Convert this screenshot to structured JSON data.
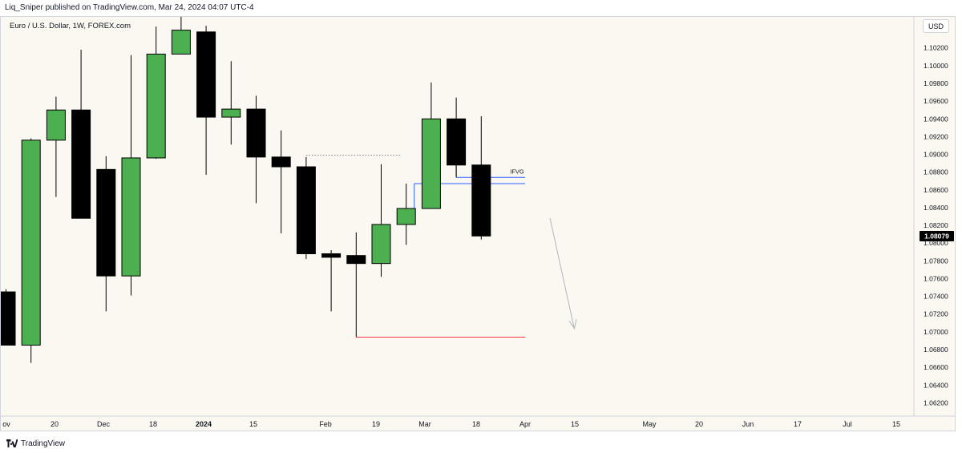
{
  "header": {
    "published": "Liq_Sniper published on TradingView.com, Mar 24, 2024 04:07 UTC-4"
  },
  "symbol": {
    "label": "Euro / U.S. Dollar, 1W, FOREX.com"
  },
  "currency": {
    "label": "USD"
  },
  "footer": {
    "brand": "TradingView"
  },
  "colors": {
    "background": "#fbf8f1",
    "bull": "#4caf50",
    "bear": "#000000",
    "wick": "#000000",
    "grid": "none",
    "blue_level": "#2962ff",
    "red_level": "#f23645",
    "arrow": "#b2b5be",
    "last_price_bg": "#000000"
  },
  "chart_data": {
    "type": "candlestick",
    "instrument": "Euro / U.S. Dollar",
    "timeframe": "1W",
    "grid": false,
    "ylim": [
      1.0605,
      1.1055
    ],
    "y_ticks": [
      1.102,
      1.1,
      1.098,
      1.096,
      1.094,
      1.092,
      1.09,
      1.088,
      1.086,
      1.084,
      1.082,
      1.08,
      1.078,
      1.076,
      1.074,
      1.072,
      1.07,
      1.068,
      1.066,
      1.064,
      1.062
    ],
    "y_tick_labels": [
      "1.10200",
      "1.10000",
      "1.09800",
      "1.09600",
      "1.09400",
      "1.09200",
      "1.09000",
      "1.08800",
      "1.08600",
      "1.08400",
      "1.08200",
      "1.08000",
      "1.07800",
      "1.07600",
      "1.07400",
      "1.07200",
      "1.07000",
      "1.06800",
      "1.06600",
      "1.06400",
      "1.06200"
    ],
    "x_ticks": [
      {
        "label": "ov",
        "bold": false
      },
      {
        "label": "20",
        "bold": false
      },
      {
        "label": "Dec",
        "bold": false
      },
      {
        "label": "18",
        "bold": false
      },
      {
        "label": "2024",
        "bold": true
      },
      {
        "label": "15",
        "bold": false
      },
      {
        "label": "Feb",
        "bold": false
      },
      {
        "label": "19",
        "bold": false
      },
      {
        "label": "Mar",
        "bold": false
      },
      {
        "label": "18",
        "bold": false
      },
      {
        "label": "Apr",
        "bold": false
      },
      {
        "label": "15",
        "bold": false
      },
      {
        "label": "May",
        "bold": false
      },
      {
        "label": "20",
        "bold": false
      },
      {
        "label": "Jun",
        "bold": false
      },
      {
        "label": "17",
        "bold": false
      },
      {
        "label": "Jul",
        "bold": false
      },
      {
        "label": "15",
        "bold": false
      }
    ],
    "candles": [
      {
        "o": 1.0745,
        "h": 1.0748,
        "l": 1.0685,
        "c": 1.0685
      },
      {
        "o": 1.0685,
        "h": 1.0918,
        "l": 1.0665,
        "c": 1.0916
      },
      {
        "o": 1.0916,
        "h": 1.0965,
        "l": 1.0852,
        "c": 1.095
      },
      {
        "o": 1.095,
        "h": 1.1018,
        "l": 1.0828,
        "c": 1.0828
      },
      {
        "o": 1.0883,
        "h": 1.0898,
        "l": 1.0723,
        "c": 1.0763
      },
      {
        "o": 1.0763,
        "h": 1.1012,
        "l": 1.0741,
        "c": 1.0896
      },
      {
        "o": 1.0896,
        "h": 1.1044,
        "l": 1.0895,
        "c": 1.1013
      },
      {
        "o": 1.1013,
        "h": 1.1065,
        "l": 1.1013,
        "c": 1.104
      },
      {
        "o": 1.1038,
        "h": 1.1045,
        "l": 1.0877,
        "c": 1.0942
      },
      {
        "o": 1.0942,
        "h": 1.1005,
        "l": 1.0911,
        "c": 1.0951
      },
      {
        "o": 1.0951,
        "h": 1.0966,
        "l": 1.0845,
        "c": 1.0897
      },
      {
        "o": 1.0897,
        "h": 1.0927,
        "l": 1.0811,
        "c": 1.0886
      },
      {
        "o": 1.0886,
        "h": 1.0897,
        "l": 1.0782,
        "c": 1.0788
      },
      {
        "o": 1.0788,
        "h": 1.0792,
        "l": 1.0723,
        "c": 1.0784
      },
      {
        "o": 1.0786,
        "h": 1.0812,
        "l": 1.0694,
        "c": 1.0777
      },
      {
        "o": 1.0777,
        "h": 1.0889,
        "l": 1.0762,
        "c": 1.0821
      },
      {
        "o": 1.0821,
        "h": 1.0867,
        "l": 1.0798,
        "c": 1.0839
      },
      {
        "o": 1.0839,
        "h": 1.0981,
        "l": 1.0839,
        "c": 1.094
      },
      {
        "o": 1.094,
        "h": 1.0964,
        "l": 1.0875,
        "c": 1.0888
      },
      {
        "o": 1.0888,
        "h": 1.0943,
        "l": 1.0804,
        "c": 1.0808
      }
    ],
    "levels": [
      {
        "name": "ifvg-upper",
        "price": 1.0874,
        "color": "#2962ff",
        "label": "IFVG"
      },
      {
        "name": "ifvg-lower",
        "price": 1.0867,
        "color": "#2962ff",
        "label": ""
      },
      {
        "name": "dotted-high",
        "price": 1.0899,
        "color": "#787b86",
        "label": ""
      },
      {
        "name": "red-low",
        "price": 1.0694,
        "color": "#f23645",
        "label": ""
      }
    ],
    "last_price": {
      "value": 1.08079,
      "label": "1.08079"
    }
  }
}
